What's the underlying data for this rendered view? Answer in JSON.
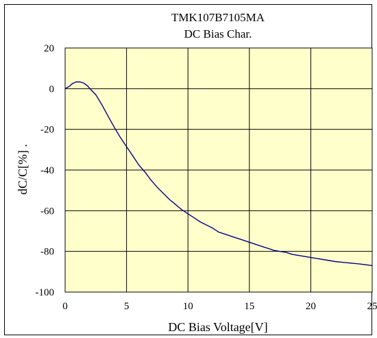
{
  "chart_data": {
    "type": "line",
    "title": "TMK107B7105MA",
    "subtitle": "DC Bias Char.",
    "xlabel": "DC Bias Voltage[V]",
    "ylabel": "dC/C[%] .",
    "xlim": [
      0,
      25
    ],
    "ylim": [
      -100,
      20
    ],
    "xticks": [
      0,
      5,
      10,
      15,
      20,
      25
    ],
    "yticks": [
      20,
      0,
      -20,
      -40,
      -60,
      -80,
      -100
    ],
    "grid": true,
    "legend": "none",
    "colors": {
      "plot_bg": "#ffffcc",
      "line": "#000080",
      "grid": "#000000"
    },
    "series": [
      {
        "x": [
          0,
          0.3,
          0.6,
          0.9,
          1.2,
          1.5,
          1.8,
          2.1,
          2.5,
          3.0,
          3.5,
          4.0,
          4.5,
          5.0,
          5.5,
          6.0,
          6.5,
          7.0,
          7.5,
          8.0,
          8.5,
          9.0,
          9.5,
          10.0,
          10.5,
          11.0,
          11.5,
          12.0,
          12.5,
          13.0,
          13.5,
          14.0,
          14.5,
          15.0,
          15.5,
          16.0,
          16.5,
          17.0,
          17.5,
          18.0,
          18.5,
          19.0,
          19.5,
          20.0,
          20.5,
          21.0,
          21.5,
          22.0,
          22.5,
          23.0,
          23.5,
          24.0,
          24.5,
          25.0
        ],
        "values": [
          0,
          1,
          2.5,
          3.3,
          3.3,
          2.8,
          1.5,
          -0.5,
          -3,
          -8,
          -13.5,
          -19,
          -24,
          -28.5,
          -33,
          -37.5,
          -41,
          -45,
          -48.5,
          -51.5,
          -54.5,
          -57,
          -59.5,
          -61.5,
          -63.5,
          -65.5,
          -67,
          -68.5,
          -70.5,
          -71.5,
          -72.5,
          -73.5,
          -74.5,
          -75.5,
          -76.5,
          -77.5,
          -78.5,
          -79.5,
          -80,
          -80.5,
          -81.5,
          -82,
          -82.5,
          -83,
          -83.5,
          -84,
          -84.5,
          -85,
          -85.3,
          -85.6,
          -85.9,
          -86.2,
          -86.6,
          -87
        ]
      }
    ]
  }
}
